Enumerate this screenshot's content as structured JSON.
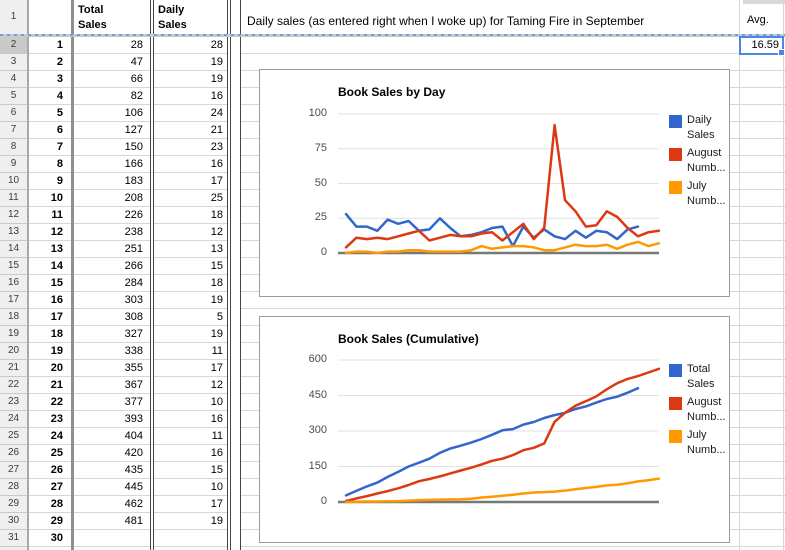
{
  "sheet": {
    "headers": {
      "total": "Total\nSales",
      "daily": "Daily\nSales",
      "title_note": "Daily sales (as entered right when I woke up) for Taming Fire in September",
      "avg": "Avg."
    },
    "selected_cell": {
      "value": "16.59"
    },
    "row_headers": [
      1,
      2,
      3,
      4,
      5,
      6,
      7,
      8,
      9,
      10,
      11,
      12,
      13,
      14,
      15,
      16,
      17,
      18,
      19,
      20,
      21,
      22,
      23,
      24,
      25,
      26,
      27,
      28,
      29,
      30,
      31
    ],
    "days": [
      "1",
      "2",
      "3",
      "4",
      "5",
      "6",
      "7",
      "8",
      "9",
      "10",
      "11",
      "12",
      "13",
      "14",
      "15",
      "16",
      "17",
      "18",
      "19",
      "20",
      "21",
      "22",
      "23",
      "24",
      "25",
      "26",
      "27",
      "28",
      "29",
      "30"
    ],
    "total_sales": [
      "28",
      "47",
      "66",
      "82",
      "106",
      "127",
      "150",
      "166",
      "183",
      "208",
      "226",
      "238",
      "251",
      "266",
      "284",
      "303",
      "308",
      "327",
      "338",
      "355",
      "367",
      "377",
      "393",
      "404",
      "420",
      "435",
      "445",
      "462",
      "481",
      ""
    ],
    "daily_sales": [
      "28",
      "19",
      "19",
      "16",
      "24",
      "21",
      "23",
      "16",
      "17",
      "25",
      "18",
      "12",
      "13",
      "15",
      "18",
      "19",
      "5",
      "19",
      "11",
      "17",
      "12",
      "10",
      "16",
      "11",
      "16",
      "15",
      "10",
      "17",
      "19",
      ""
    ]
  },
  "chart_data": [
    {
      "type": "line",
      "title": "Book Sales by Day",
      "xlabel": "",
      "ylabel": "",
      "ylim": [
        0,
        100
      ],
      "yticks": [
        0,
        25,
        50,
        75,
        100
      ],
      "grid": true,
      "legend_position": "right",
      "x": "day of month (1-31)",
      "series": [
        {
          "name": "Daily Sales",
          "legend_label": [
            "Daily",
            "Sales"
          ],
          "color": "#3366cc",
          "values": [
            28,
            19,
            19,
            16,
            24,
            21,
            23,
            16,
            17,
            25,
            18,
            12,
            13,
            15,
            18,
            19,
            5,
            19,
            11,
            17,
            12,
            10,
            16,
            11,
            16,
            15,
            10,
            17,
            19
          ]
        },
        {
          "name": "August Numbers",
          "legend_label": [
            "August",
            "Numb..."
          ],
          "color": "#dc3912",
          "values": [
            4,
            11,
            10,
            11,
            10,
            12,
            14,
            16,
            9,
            11,
            13,
            12,
            12,
            14,
            15,
            9,
            15,
            21,
            10,
            18,
            92,
            38,
            30,
            19,
            20,
            30,
            26,
            18,
            12,
            15,
            16
          ]
        },
        {
          "name": "July Numbers",
          "legend_label": [
            "July",
            "Numb..."
          ],
          "color": "#ff9900",
          "values": [
            0,
            1,
            1,
            0,
            1,
            1,
            2,
            2,
            1,
            1,
            1,
            1,
            2,
            5,
            3,
            4,
            5,
            5,
            4,
            2,
            2,
            4,
            6,
            5,
            5,
            6,
            3,
            6,
            8,
            5,
            7
          ]
        }
      ]
    },
    {
      "type": "line",
      "title": "Book Sales (Cumulative)",
      "xlabel": "",
      "ylabel": "",
      "ylim": [
        0,
        600
      ],
      "yticks": [
        0,
        150,
        300,
        450,
        600
      ],
      "grid": true,
      "legend_position": "right",
      "x": "day of month (1-31)",
      "series": [
        {
          "name": "Total Sales",
          "legend_label": [
            "Total",
            "Sales"
          ],
          "color": "#3366cc",
          "values": [
            28,
            47,
            66,
            82,
            106,
            127,
            150,
            166,
            183,
            208,
            226,
            238,
            251,
            266,
            284,
            303,
            308,
            327,
            338,
            355,
            367,
            377,
            393,
            404,
            420,
            435,
            445,
            462,
            481
          ]
        },
        {
          "name": "August Numbers",
          "legend_label": [
            "August",
            "Numb..."
          ],
          "color": "#dc3912",
          "values": [
            4,
            15,
            25,
            36,
            46,
            58,
            72,
            88,
            97,
            108,
            121,
            133,
            145,
            159,
            174,
            183,
            198,
            219,
            229,
            247,
            339,
            377,
            407,
            426,
            446,
            476,
            502,
            520,
            532,
            547,
            563
          ]
        },
        {
          "name": "July Numbers",
          "legend_label": [
            "July",
            "Numb..."
          ],
          "color": "#ff9900",
          "values": [
            0,
            1,
            2,
            2,
            3,
            4,
            6,
            8,
            9,
            10,
            11,
            12,
            14,
            19,
            22,
            26,
            31,
            36,
            40,
            42,
            44,
            48,
            54,
            59,
            64,
            70,
            73,
            79,
            87,
            92,
            99
          ]
        }
      ]
    }
  ]
}
